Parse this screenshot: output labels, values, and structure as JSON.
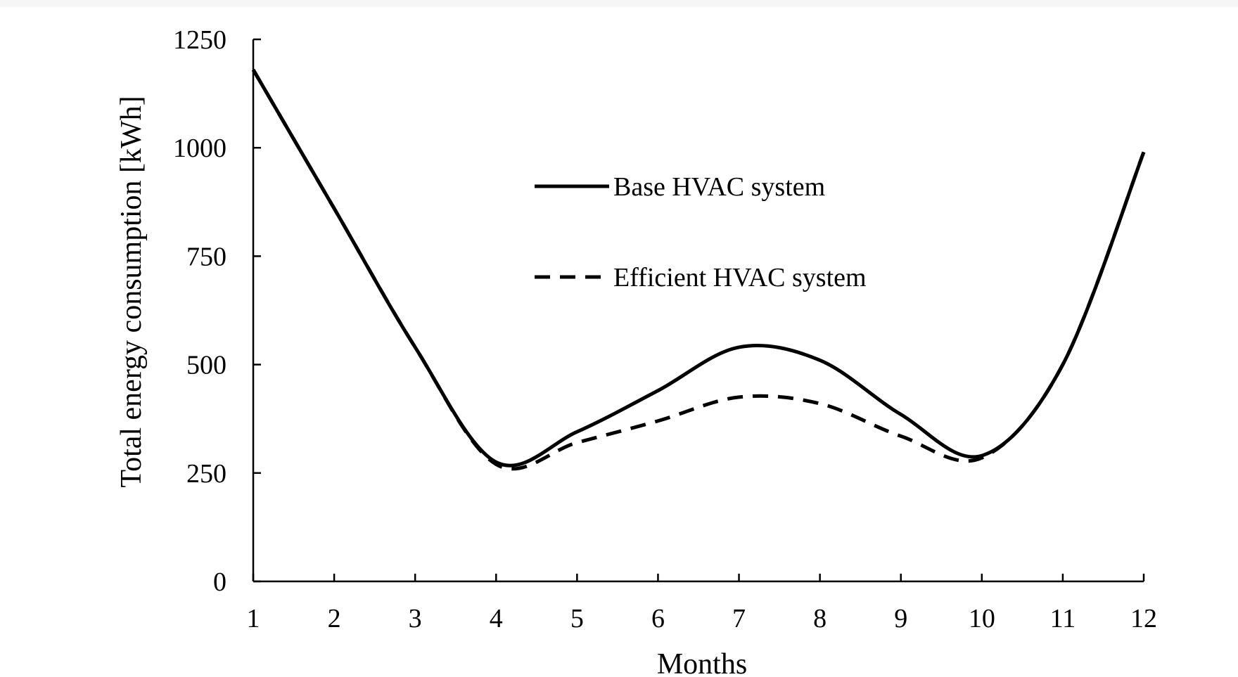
{
  "chart_data": {
    "type": "line",
    "title": "",
    "xlabel": "Months",
    "ylabel": "Total energy consumption [kWh]",
    "x": [
      1,
      2,
      3,
      4,
      5,
      6,
      7,
      8,
      9,
      10,
      11,
      12
    ],
    "x_tick_labels": [
      "1",
      "2",
      "3",
      "4",
      "5",
      "6",
      "7",
      "8",
      "9",
      "10",
      "11",
      "12"
    ],
    "xlim": [
      1,
      12
    ],
    "ylim": [
      0,
      1250
    ],
    "y_ticks": [
      0,
      250,
      500,
      750,
      1000,
      1250
    ],
    "y_tick_labels": [
      "0",
      "250",
      "500",
      "750",
      "1000",
      "1250"
    ],
    "grid": false,
    "legend_position": "upper center",
    "series": [
      {
        "name": "Base HVAC system",
        "line_style": "solid",
        "color": "#000000",
        "values": [
          1180,
          860,
          540,
          275,
          345,
          440,
          540,
          510,
          385,
          290,
          500,
          990
        ]
      },
      {
        "name": "Efficient HVAC system",
        "line_style": "dashed",
        "color": "#000000",
        "values": [
          1180,
          860,
          540,
          270,
          320,
          370,
          425,
          410,
          335,
          285,
          500,
          990
        ]
      }
    ]
  }
}
